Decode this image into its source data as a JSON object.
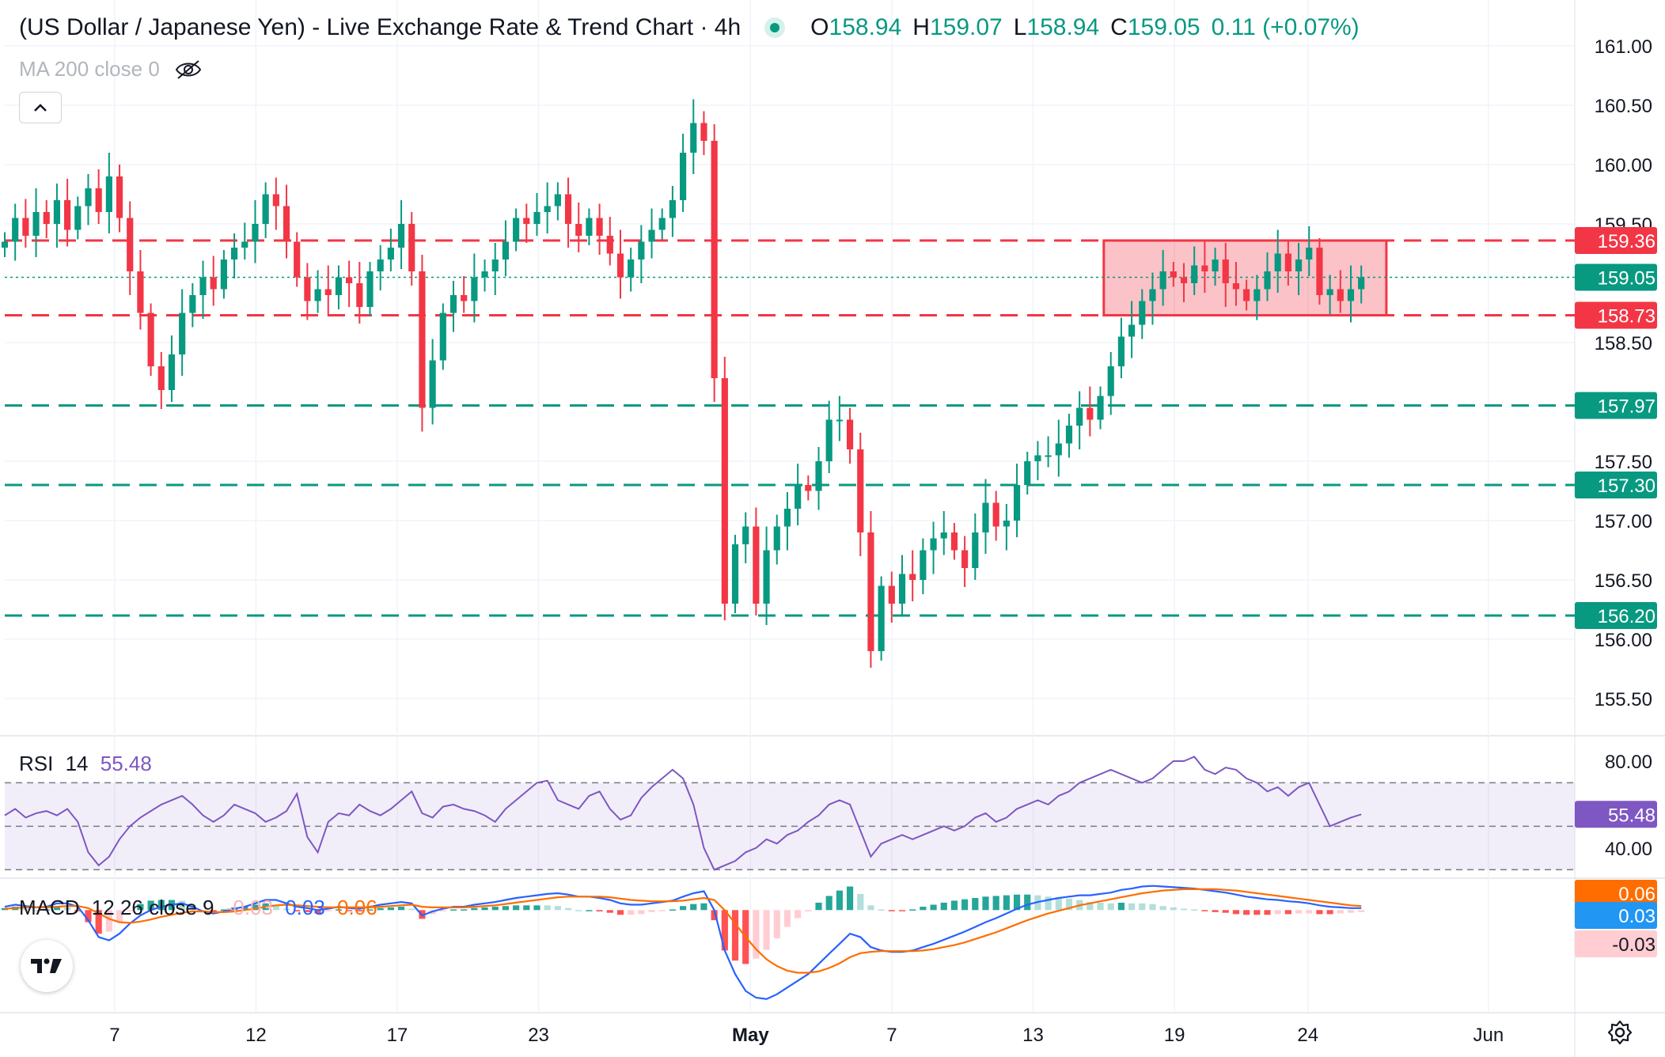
{
  "header": {
    "title": "(US Dollar / Japanese Yen) - Live Exchange Rate & Trend Chart · 4h",
    "open_label": "O",
    "open": "158.94",
    "high_label": "H",
    "high": "159.07",
    "low_label": "L",
    "low": "158.94",
    "close_label": "C",
    "close": "159.05",
    "change": "0.11 (+0.07%)",
    "ma_label": "MA 200 close 0"
  },
  "icons": {
    "live": "live-dot-icon",
    "eye": "eye-hidden-icon",
    "collapse": "chevron-up-icon",
    "logo": "tradingview-logo-icon",
    "settings": "gear-icon"
  },
  "colors": {
    "up": "#089981",
    "down": "#f23645",
    "rsi": "#7e57c2",
    "macd": "#2962ff",
    "signal": "#ff6d00",
    "zone": "#f5a3a9",
    "grid": "#f0f3fa"
  },
  "chart_data": [
    {
      "type": "candlestick",
      "title": "(US Dollar / Japanese Yen) - Live Exchange Rate & Trend Chart · 4h",
      "ylim": [
        155.2,
        161.2
      ],
      "y_ticks": [
        "161.00",
        "160.50",
        "160.00",
        "159.50",
        "158.50",
        "157.50",
        "157.00",
        "156.50",
        "156.00",
        "155.50"
      ],
      "x_ticks": [
        {
          "label": "7",
          "x": 0.07
        },
        {
          "label": "12",
          "x": 0.16
        },
        {
          "label": "17",
          "x": 0.25
        },
        {
          "label": "23",
          "x": 0.34
        },
        {
          "label": "May",
          "x": 0.475
        },
        {
          "label": "7",
          "x": 0.565
        },
        {
          "label": "13",
          "x": 0.655
        },
        {
          "label": "19",
          "x": 0.745
        },
        {
          "label": "24",
          "x": 0.83
        },
        {
          "label": "Jun",
          "x": 0.945
        }
      ],
      "x_data_range": [
        0,
        0.864
      ],
      "close_series": [
        159.35,
        159.55,
        159.4,
        159.6,
        159.5,
        159.7,
        159.45,
        159.65,
        159.8,
        159.6,
        159.9,
        159.55,
        159.1,
        158.75,
        158.3,
        158.1,
        158.4,
        158.75,
        158.9,
        159.05,
        158.95,
        159.2,
        159.3,
        159.35,
        159.5,
        159.75,
        159.65,
        159.35,
        159.05,
        158.85,
        158.95,
        158.9,
        159.05,
        159.0,
        158.8,
        159.1,
        159.2,
        159.3,
        159.5,
        159.1,
        157.95,
        158.35,
        158.75,
        158.9,
        158.85,
        159.05,
        159.1,
        159.2,
        159.35,
        159.55,
        159.5,
        159.6,
        159.65,
        159.75,
        159.5,
        159.4,
        159.55,
        159.4,
        159.25,
        159.05,
        159.2,
        159.35,
        159.45,
        159.55,
        159.7,
        160.1,
        160.35,
        160.2,
        158.2,
        156.3,
        156.8,
        156.95,
        156.3,
        156.75,
        156.95,
        157.1,
        157.3,
        157.25,
        157.5,
        157.85,
        157.85,
        157.6,
        156.9,
        155.9,
        156.45,
        156.3,
        156.55,
        156.5,
        156.75,
        156.85,
        156.9,
        156.75,
        156.6,
        156.9,
        157.15,
        156.95,
        157.0,
        157.3,
        157.5,
        157.55,
        157.55,
        157.65,
        157.8,
        157.95,
        157.85,
        158.05,
        158.3,
        158.55,
        158.65,
        158.85,
        158.95,
        159.1,
        159.05,
        159.0,
        159.15,
        159.1,
        159.2,
        159.0,
        158.95,
        158.85,
        158.95,
        159.1,
        159.25,
        159.1,
        159.2,
        159.3,
        158.9,
        158.95,
        158.85,
        158.95,
        159.05
      ],
      "horizontal_levels": [
        {
          "value": 159.36,
          "label": "159.36",
          "color": "#f23645",
          "style": "dashed"
        },
        {
          "value": 159.05,
          "label": "159.05",
          "color": "#089981",
          "style": "dotted"
        },
        {
          "value": 158.73,
          "label": "158.73",
          "color": "#f23645",
          "style": "dashed"
        },
        {
          "value": 157.97,
          "label": "157.97",
          "color": "#089981",
          "style": "dashed"
        },
        {
          "value": 157.3,
          "label": "157.30",
          "color": "#089981",
          "style": "dashed"
        },
        {
          "value": 156.2,
          "label": "156.20",
          "color": "#089981",
          "style": "dashed"
        }
      ],
      "zone": {
        "y_top": 159.36,
        "y_bottom": 158.73,
        "x_start": 0.7,
        "x_end": 0.88,
        "color": "#f23645"
      }
    },
    {
      "type": "line",
      "name": "RSI 14",
      "label": "RSI",
      "params": "14",
      "value": "55.48",
      "ylim": [
        29,
        88
      ],
      "y_ticks": [
        "80.00",
        "40.00"
      ],
      "band": [
        30,
        70
      ],
      "midline": 50,
      "values": [
        55,
        58,
        54,
        56,
        57,
        55,
        58,
        52,
        38,
        32,
        36,
        44,
        50,
        54,
        57,
        60,
        62,
        64,
        60,
        55,
        52,
        55,
        60,
        58,
        56,
        52,
        54,
        57,
        65,
        45,
        38,
        52,
        56,
        55,
        60,
        57,
        55,
        58,
        62,
        66,
        56,
        54,
        59,
        60,
        58,
        57,
        55,
        52,
        58,
        62,
        66,
        70,
        71,
        62,
        60,
        58,
        64,
        66,
        58,
        53,
        55,
        63,
        68,
        72,
        76,
        72,
        60,
        40,
        30,
        32,
        34,
        38,
        40,
        44,
        42,
        46,
        48,
        52,
        55,
        60,
        62,
        60,
        48,
        36,
        42,
        44,
        46,
        44,
        46,
        48,
        50,
        48,
        50,
        54,
        56,
        52,
        54,
        58,
        60,
        62,
        60,
        64,
        66,
        70,
        72,
        74,
        76,
        74,
        72,
        70,
        72,
        76,
        80,
        80,
        82,
        76,
        74,
        77,
        76,
        72,
        70,
        66,
        68,
        64,
        68,
        70,
        60,
        50,
        52,
        54,
        55.48
      ]
    },
    {
      "type": "line",
      "name": "MACD",
      "label": "MACD",
      "params": "12 26 close 9",
      "hist_value": "-0.03",
      "macd_value": "0.03",
      "signal_value": "0.06",
      "ylim": [
        -1.5,
        0.45
      ],
      "macd": [
        0.05,
        0.08,
        0.06,
        0.04,
        0.05,
        0.1,
        0.1,
        0.05,
        -0.15,
        -0.4,
        -0.45,
        -0.35,
        -0.2,
        -0.08,
        0.0,
        0.05,
        0.08,
        0.1,
        0.05,
        -0.02,
        -0.05,
        -0.02,
        0.02,
        0.05,
        0.1,
        0.15,
        0.15,
        0.1,
        0.05,
        0.03,
        0.0,
        0.02,
        0.05,
        0.03,
        0.02,
        0.05,
        0.08,
        0.1,
        0.12,
        0.1,
        -0.08,
        -0.02,
        0.02,
        0.05,
        0.05,
        0.08,
        0.1,
        0.12,
        0.15,
        0.18,
        0.2,
        0.22,
        0.24,
        0.25,
        0.23,
        0.2,
        0.2,
        0.18,
        0.15,
        0.1,
        0.08,
        0.08,
        0.1,
        0.12,
        0.14,
        0.2,
        0.25,
        0.28,
        0.0,
        -0.6,
        -0.95,
        -1.2,
        -1.3,
        -1.32,
        -1.25,
        -1.15,
        -1.05,
        -0.95,
        -0.8,
        -0.65,
        -0.5,
        -0.35,
        -0.4,
        -0.55,
        -0.6,
        -0.62,
        -0.62,
        -0.6,
        -0.55,
        -0.5,
        -0.44,
        -0.38,
        -0.32,
        -0.25,
        -0.18,
        -0.12,
        -0.05,
        0.02,
        0.08,
        0.12,
        0.15,
        0.18,
        0.2,
        0.22,
        0.22,
        0.24,
        0.26,
        0.3,
        0.32,
        0.35,
        0.36,
        0.35,
        0.34,
        0.33,
        0.32,
        0.3,
        0.28,
        0.26,
        0.23,
        0.2,
        0.18,
        0.16,
        0.15,
        0.13,
        0.12,
        0.1,
        0.07,
        0.05,
        0.04,
        0.03,
        0.03
      ],
      "signal": [
        0.02,
        0.03,
        0.04,
        0.04,
        0.04,
        0.05,
        0.06,
        0.06,
        0.03,
        -0.05,
        -0.13,
        -0.18,
        -0.19,
        -0.17,
        -0.14,
        -0.1,
        -0.07,
        -0.04,
        -0.02,
        -0.02,
        -0.03,
        -0.03,
        -0.02,
        0.0,
        0.02,
        0.05,
        0.07,
        0.08,
        0.07,
        0.06,
        0.05,
        0.04,
        0.04,
        0.04,
        0.04,
        0.04,
        0.05,
        0.06,
        0.07,
        0.08,
        0.05,
        0.04,
        0.04,
        0.04,
        0.04,
        0.05,
        0.06,
        0.07,
        0.09,
        0.11,
        0.13,
        0.15,
        0.17,
        0.19,
        0.2,
        0.2,
        0.2,
        0.2,
        0.19,
        0.17,
        0.15,
        0.14,
        0.13,
        0.13,
        0.13,
        0.14,
        0.16,
        0.18,
        0.15,
        0.0,
        -0.2,
        -0.4,
        -0.58,
        -0.73,
        -0.83,
        -0.9,
        -0.93,
        -0.93,
        -0.91,
        -0.86,
        -0.79,
        -0.7,
        -0.64,
        -0.62,
        -0.61,
        -0.61,
        -0.61,
        -0.61,
        -0.6,
        -0.58,
        -0.55,
        -0.52,
        -0.48,
        -0.43,
        -0.38,
        -0.33,
        -0.27,
        -0.21,
        -0.15,
        -0.1,
        -0.05,
        -0.01,
        0.03,
        0.07,
        0.1,
        0.13,
        0.16,
        0.19,
        0.22,
        0.25,
        0.27,
        0.29,
        0.3,
        0.31,
        0.31,
        0.31,
        0.31,
        0.3,
        0.29,
        0.27,
        0.25,
        0.23,
        0.21,
        0.19,
        0.17,
        0.15,
        0.13,
        0.11,
        0.09,
        0.07,
        0.06
      ]
    }
  ]
}
